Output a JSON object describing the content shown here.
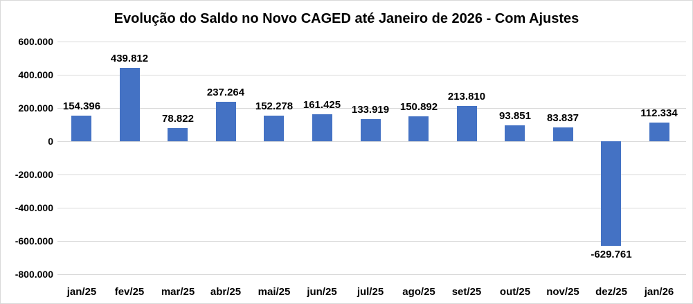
{
  "chart_data": {
    "type": "bar",
    "title": "Evolução do Saldo no Novo CAGED até Janeiro de 2026 - Com Ajustes",
    "categories": [
      "jan/25",
      "fev/25",
      "mar/25",
      "abr/25",
      "mai/25",
      "jun/25",
      "jul/25",
      "ago/25",
      "set/25",
      "out/25",
      "nov/25",
      "dez/25",
      "jan/26"
    ],
    "values": [
      154396,
      439812,
      78822,
      237264,
      152278,
      161425,
      133919,
      150892,
      213810,
      93851,
      83837,
      -629761,
      112334
    ],
    "value_labels": [
      "154.396",
      "439.812",
      "78.822",
      "237.264",
      "152.278",
      "161.425",
      "133.919",
      "150.892",
      "213.810",
      "93.851",
      "83.837",
      "-629.761",
      "112.334"
    ],
    "y_ticks": [
      {
        "value": 600000,
        "label": "600.000"
      },
      {
        "value": 400000,
        "label": "400.000"
      },
      {
        "value": 200000,
        "label": "200.000"
      },
      {
        "value": 0,
        "label": "0"
      },
      {
        "value": -200000,
        "label": "-200.000"
      },
      {
        "value": -400000,
        "label": "-400.000"
      },
      {
        "value": -600000,
        "label": "-600.000"
      },
      {
        "value": -800000,
        "label": "-800.000"
      }
    ],
    "ylim": [
      -800000,
      600000
    ],
    "xlabel": "",
    "ylabel": "",
    "legend": null,
    "grid": "horizontal",
    "bar_color": "#4472C4",
    "gridline_color": "#D9D9D9",
    "text_color": "#000000",
    "background_color": "#FFFFFF"
  }
}
